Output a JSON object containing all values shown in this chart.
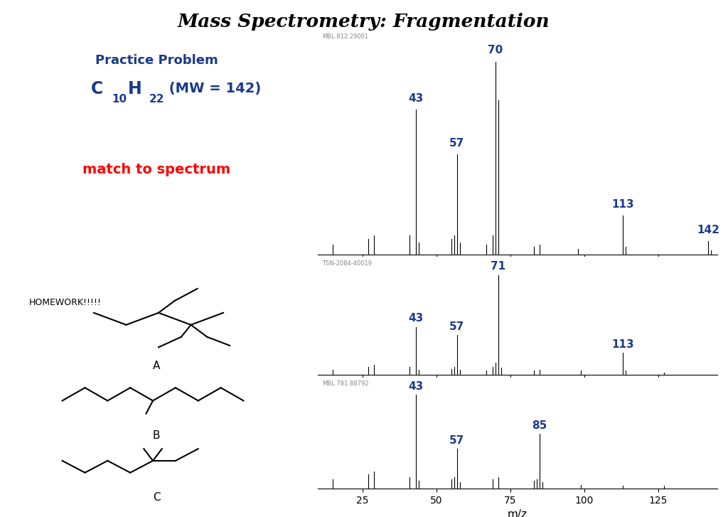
{
  "title": "Mass Spectrometry: Fragmentation",
  "subtitle": "Practice Problem",
  "formula_color": "#1a3a8c",
  "match_text": "match to spectrum",
  "homework_text": "HOMEWORK!!!!!",
  "background_color": "#ffffff",
  "label_color": "#1a3a8c",
  "spectrum1": {
    "label": "MBL.812.29001",
    "peaks": [
      {
        "mz": 15,
        "intensity": 0.05
      },
      {
        "mz": 27,
        "intensity": 0.08
      },
      {
        "mz": 29,
        "intensity": 0.1
      },
      {
        "mz": 41,
        "intensity": 0.1
      },
      {
        "mz": 43,
        "intensity": 0.75
      },
      {
        "mz": 44,
        "intensity": 0.06
      },
      {
        "mz": 55,
        "intensity": 0.08
      },
      {
        "mz": 56,
        "intensity": 0.1
      },
      {
        "mz": 57,
        "intensity": 0.52
      },
      {
        "mz": 58,
        "intensity": 0.06
      },
      {
        "mz": 67,
        "intensity": 0.05
      },
      {
        "mz": 69,
        "intensity": 0.1
      },
      {
        "mz": 70,
        "intensity": 1.0
      },
      {
        "mz": 71,
        "intensity": 0.8
      },
      {
        "mz": 83,
        "intensity": 0.04
      },
      {
        "mz": 85,
        "intensity": 0.05
      },
      {
        "mz": 98,
        "intensity": 0.03
      },
      {
        "mz": 113,
        "intensity": 0.2
      },
      {
        "mz": 114,
        "intensity": 0.04
      },
      {
        "mz": 142,
        "intensity": 0.07
      },
      {
        "mz": 143,
        "intensity": 0.02
      }
    ],
    "labels": [
      {
        "mz": 43,
        "text": "43"
      },
      {
        "mz": 70,
        "text": "70"
      },
      {
        "mz": 57,
        "text": "57"
      },
      {
        "mz": 113,
        "text": "113"
      },
      {
        "mz": 142,
        "text": "142"
      }
    ]
  },
  "spectrum2": {
    "label": "TSN-2084-40019",
    "peaks": [
      {
        "mz": 15,
        "intensity": 0.05
      },
      {
        "mz": 27,
        "intensity": 0.08
      },
      {
        "mz": 29,
        "intensity": 0.1
      },
      {
        "mz": 41,
        "intensity": 0.08
      },
      {
        "mz": 43,
        "intensity": 0.48
      },
      {
        "mz": 44,
        "intensity": 0.05
      },
      {
        "mz": 55,
        "intensity": 0.06
      },
      {
        "mz": 56,
        "intensity": 0.08
      },
      {
        "mz": 57,
        "intensity": 0.4
      },
      {
        "mz": 58,
        "intensity": 0.05
      },
      {
        "mz": 67,
        "intensity": 0.04
      },
      {
        "mz": 69,
        "intensity": 0.08
      },
      {
        "mz": 70,
        "intensity": 0.12
      },
      {
        "mz": 71,
        "intensity": 1.0
      },
      {
        "mz": 72,
        "intensity": 0.07
      },
      {
        "mz": 83,
        "intensity": 0.04
      },
      {
        "mz": 85,
        "intensity": 0.05
      },
      {
        "mz": 99,
        "intensity": 0.04
      },
      {
        "mz": 113,
        "intensity": 0.22
      },
      {
        "mz": 114,
        "intensity": 0.04
      },
      {
        "mz": 127,
        "intensity": 0.02
      }
    ],
    "labels": [
      {
        "mz": 43,
        "text": "43"
      },
      {
        "mz": 71,
        "text": "71"
      },
      {
        "mz": 57,
        "text": "57"
      },
      {
        "mz": 113,
        "text": "113"
      }
    ]
  },
  "spectrum3": {
    "label": "MBL.781.88792",
    "peaks": [
      {
        "mz": 15,
        "intensity": 0.1
      },
      {
        "mz": 27,
        "intensity": 0.15
      },
      {
        "mz": 29,
        "intensity": 0.18
      },
      {
        "mz": 41,
        "intensity": 0.12
      },
      {
        "mz": 43,
        "intensity": 1.0
      },
      {
        "mz": 44,
        "intensity": 0.08
      },
      {
        "mz": 55,
        "intensity": 0.1
      },
      {
        "mz": 56,
        "intensity": 0.12
      },
      {
        "mz": 57,
        "intensity": 0.42
      },
      {
        "mz": 58,
        "intensity": 0.07
      },
      {
        "mz": 69,
        "intensity": 0.1
      },
      {
        "mz": 71,
        "intensity": 0.12
      },
      {
        "mz": 83,
        "intensity": 0.08
      },
      {
        "mz": 84,
        "intensity": 0.1
      },
      {
        "mz": 85,
        "intensity": 0.58
      },
      {
        "mz": 86,
        "intensity": 0.07
      },
      {
        "mz": 99,
        "intensity": 0.04
      },
      {
        "mz": 113,
        "intensity": 0.03
      },
      {
        "mz": 127,
        "intensity": 0.03
      }
    ],
    "labels": [
      {
        "mz": 43,
        "text": "43"
      },
      {
        "mz": 57,
        "text": "57"
      },
      {
        "mz": 85,
        "text": "85"
      }
    ]
  },
  "xmin": 10,
  "xmax": 145,
  "xticks": [
    25,
    50,
    75,
    100,
    125
  ],
  "xlabel": "m/z"
}
